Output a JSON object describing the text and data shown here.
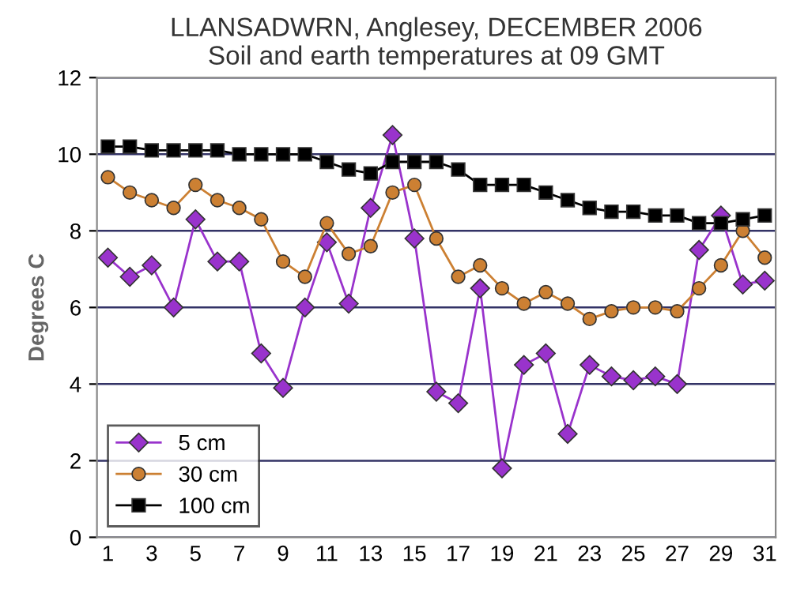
{
  "chart_data": {
    "type": "line",
    "title": "LLANSADWRN, Anglesey, DECEMBER 2006\nSoil and earth temperatures at 09 GMT",
    "ylabel": "Degrees C",
    "categories": [
      "1",
      null,
      "3",
      null,
      "5",
      null,
      "7",
      null,
      "9",
      null,
      "11",
      null,
      "13",
      null,
      "15",
      null,
      "17",
      null,
      "19",
      null,
      "21",
      null,
      "23",
      null,
      "25",
      null,
      "27",
      null,
      "29",
      null,
      "31"
    ],
    "series": [
      {
        "name": "5 cm",
        "color": "#9933cc",
        "marker": "diamond",
        "values": [
          7.3,
          6.8,
          7.1,
          6.0,
          8.3,
          7.2,
          7.2,
          4.8,
          3.9,
          6.0,
          7.7,
          6.1,
          8.6,
          10.5,
          7.8,
          3.8,
          3.5,
          6.5,
          1.8,
          4.5,
          4.8,
          2.7,
          4.5,
          4.2,
          4.1,
          4.2,
          4.0,
          7.5,
          8.4,
          6.6,
          6.7
        ]
      },
      {
        "name": "30 cm",
        "color": "#cc8033",
        "marker": "circle",
        "values": [
          9.4,
          9.0,
          8.8,
          8.6,
          9.2,
          8.8,
          8.6,
          8.3,
          7.2,
          6.8,
          8.2,
          7.4,
          7.6,
          9.0,
          9.2,
          7.8,
          6.8,
          7.1,
          6.5,
          6.1,
          6.4,
          6.1,
          5.7,
          5.9,
          6.0,
          6.0,
          5.9,
          6.5,
          7.1,
          8.0,
          7.3
        ]
      },
      {
        "name": "100 cm",
        "color": "#000000",
        "marker": "square",
        "values": [
          10.2,
          10.2,
          10.1,
          10.1,
          10.1,
          10.1,
          10.0,
          10.0,
          10.0,
          10.0,
          9.8,
          9.6,
          9.5,
          9.8,
          9.8,
          9.8,
          9.6,
          9.2,
          9.2,
          9.2,
          9.0,
          8.8,
          8.6,
          8.5,
          8.5,
          8.4,
          8.4,
          8.2,
          8.2,
          8.3,
          8.4
        ]
      }
    ],
    "ylim": [
      0,
      12
    ],
    "yticks": [
      0,
      2,
      4,
      6,
      8,
      10,
      12
    ],
    "grid": "y",
    "legend": "bottom left"
  }
}
